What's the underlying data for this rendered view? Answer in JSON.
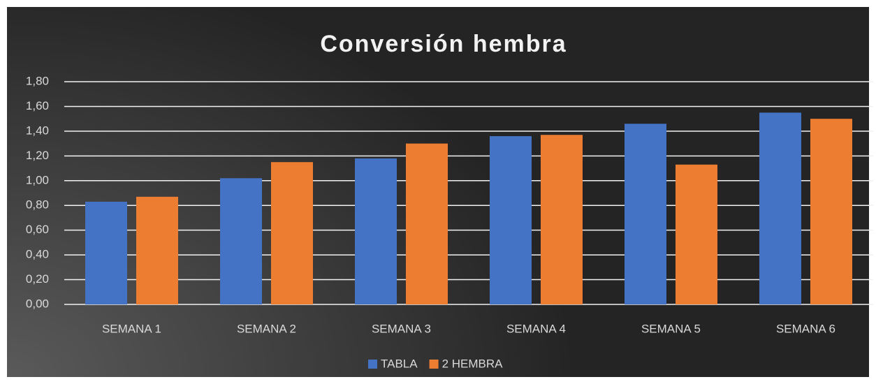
{
  "chart_data": {
    "type": "bar",
    "title": "Conversión  hembra",
    "categories": [
      "SEMANA 1",
      "SEMANA 2",
      "SEMANA 3",
      "SEMANA 4",
      "SEMANA 5",
      "SEMANA 6"
    ],
    "series": [
      {
        "name": "TABLA",
        "color": "#4472c4",
        "values": [
          0.83,
          1.02,
          1.18,
          1.36,
          1.46,
          1.55
        ]
      },
      {
        "name": "2 HEMBRA",
        "color": "#ed7d31",
        "values": [
          0.87,
          1.15,
          1.3,
          1.37,
          1.13,
          1.5
        ]
      }
    ],
    "ylim": [
      0,
      1.8
    ],
    "yticks": [
      {
        "value": 0,
        "label": "0,00"
      },
      {
        "value": 0.2,
        "label": "0,20"
      },
      {
        "value": 0.4,
        "label": "0,40"
      },
      {
        "value": 0.6,
        "label": "0,60"
      },
      {
        "value": 0.8,
        "label": "0,80"
      },
      {
        "value": 1.0,
        "label": "1,00"
      },
      {
        "value": 1.2,
        "label": "1,20"
      },
      {
        "value": 1.4,
        "label": "1,40"
      },
      {
        "value": 1.6,
        "label": "1,60"
      },
      {
        "value": 1.8,
        "label": "1,80"
      }
    ],
    "grid": true,
    "legend": "bottom"
  }
}
